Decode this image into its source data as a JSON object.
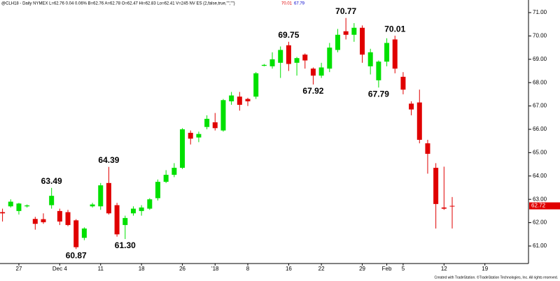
{
  "chart_data": {
    "type": "candlestick",
    "title": "@CLH18 - Daily NYMEX L=62.76 0.04 0.06% B=62.76 A=62.78 O=62.47 Hi=62.83 Lo=62.41 V=245 NV ES (2,false,true,\"\",\"\")",
    "title_marks": [
      "70.01",
      "67.79"
    ],
    "credit": "Created with TradeStation. ©TradeStation Technologies, Inc. All rights reserved.",
    "categories": [
      null,
      null,
      "27",
      null,
      null,
      null,
      null,
      "Dec 4",
      null,
      null,
      null,
      null,
      "11",
      null,
      null,
      null,
      null,
      "18",
      null,
      null,
      null,
      null,
      "26",
      null,
      null,
      null,
      "'18",
      null,
      null,
      null,
      "8",
      null,
      null,
      null,
      null,
      "16",
      null,
      null,
      null,
      "22",
      null,
      null,
      null,
      null,
      "29",
      null,
      null,
      "Feb",
      null,
      "5",
      null,
      null,
      null,
      null,
      "12",
      null,
      null,
      null,
      null,
      "19"
    ],
    "open": [
      62.45,
      62.7,
      62.5,
      62.7,
      62.16,
      62.15,
      62.75,
      62.5,
      62.45,
      62.1,
      61.35,
      62.7,
      62.7,
      63.7,
      62.75,
      61.9,
      62.4,
      62.5,
      62.6,
      63.05,
      63.75,
      64.05,
      64.35,
      65.85,
      65.65,
      66.1,
      66.3,
      65.95,
      67.2,
      67.4,
      67.3,
      67.4,
      68.72,
      68.7,
      68.85,
      69.6,
      68.85,
      69.2,
      68.6,
      68.3,
      68.6,
      69.4,
      70.2,
      70.05,
      70.35,
      68.7,
      68.1,
      68.9,
      69.85,
      68.25,
      67.1,
      67.15,
      65.4,
      64.35,
      62.65,
      62.72,
      null,
      null,
      null,
      null
    ],
    "high": [
      62.6,
      63.0,
      62.85,
      62.78,
      62.25,
      62.4,
      63.49,
      62.6,
      62.55,
      62.15,
      61.8,
      62.85,
      63.7,
      64.39,
      62.85,
      62.3,
      62.7,
      62.75,
      63.05,
      63.85,
      64.25,
      64.55,
      66.05,
      65.95,
      65.9,
      66.6,
      66.7,
      67.3,
      67.6,
      67.6,
      67.35,
      68.45,
      68.8,
      69.3,
      69.55,
      69.75,
      69.1,
      69.25,
      68.65,
      68.85,
      69.7,
      70.3,
      70.77,
      70.55,
      70.45,
      69.45,
      68.95,
      69.9,
      70.01,
      68.45,
      67.2,
      67.7,
      65.55,
      64.55,
      64.4,
      63.1,
      null,
      null,
      null,
      null
    ],
    "low": [
      62.05,
      62.65,
      62.35,
      62.65,
      61.7,
      61.95,
      62.6,
      61.9,
      61.85,
      60.87,
      61.25,
      62.65,
      62.55,
      62.35,
      61.4,
      61.3,
      62.3,
      62.3,
      62.55,
      62.95,
      63.7,
      63.95,
      64.3,
      65.35,
      65.45,
      66.0,
      65.95,
      65.9,
      67.05,
      66.8,
      67.0,
      67.3,
      68.7,
      68.6,
      68.2,
      68.5,
      68.3,
      68.6,
      67.92,
      68.2,
      68.45,
      69.3,
      69.85,
      69.75,
      68.85,
      68.35,
      67.79,
      68.7,
      68.4,
      67.5,
      66.6,
      65.4,
      64.1,
      61.75,
      62.55,
      61.75,
      null,
      null,
      null,
      null
    ],
    "close": [
      62.4,
      62.9,
      62.82,
      62.74,
      61.95,
      62.02,
      63.15,
      62.05,
      61.9,
      60.95,
      61.75,
      62.78,
      63.6,
      62.4,
      61.5,
      62.2,
      62.6,
      62.65,
      63.0,
      63.75,
      64.05,
      64.35,
      66.0,
      65.6,
      65.8,
      66.45,
      66.05,
      67.25,
      67.45,
      67.05,
      67.2,
      68.4,
      68.76,
      69.0,
      69.4,
      68.8,
      69.05,
      68.95,
      68.3,
      68.65,
      69.5,
      70.05,
      70.05,
      70.35,
      69.2,
      69.3,
      68.9,
      69.7,
      68.6,
      67.7,
      66.85,
      65.55,
      64.95,
      62.8,
      62.6,
      62.72,
      null,
      null,
      null,
      null
    ],
    "high_labels": [
      null,
      null,
      null,
      null,
      null,
      null,
      "63.49",
      null,
      null,
      null,
      null,
      null,
      null,
      "64.39",
      null,
      null,
      null,
      null,
      null,
      null,
      null,
      null,
      null,
      null,
      null,
      null,
      null,
      null,
      null,
      null,
      null,
      null,
      null,
      null,
      null,
      "69.75",
      null,
      null,
      null,
      null,
      null,
      null,
      "70.77",
      null,
      null,
      null,
      null,
      null,
      "70.01",
      null,
      null,
      null,
      null,
      null,
      null,
      null,
      null,
      null,
      null,
      null
    ],
    "low_labels": [
      null,
      null,
      null,
      null,
      null,
      null,
      null,
      null,
      null,
      "60.87",
      null,
      null,
      null,
      null,
      null,
      "61.30",
      null,
      null,
      null,
      null,
      null,
      null,
      null,
      null,
      null,
      null,
      null,
      null,
      null,
      null,
      null,
      null,
      null,
      null,
      null,
      null,
      null,
      null,
      "67.92",
      null,
      null,
      null,
      null,
      null,
      null,
      null,
      "67.79",
      null,
      null,
      null,
      null,
      null,
      null,
      null,
      null,
      null,
      null,
      null,
      null,
      null
    ],
    "up_color": "#00e000",
    "down_color": "#e00000",
    "ylim": [
      60.25,
      71.54
    ],
    "yticks": [
      {
        "value": 61,
        "label": "61.00"
      },
      {
        "value": 62,
        "label": "62.00"
      },
      {
        "value": 63,
        "label": "63.00"
      },
      {
        "value": 64,
        "label": "64.00"
      },
      {
        "value": 65,
        "label": "65.00"
      },
      {
        "value": 66,
        "label": "66.00"
      },
      {
        "value": 67,
        "label": "67.00"
      },
      {
        "value": 68,
        "label": "68.00"
      },
      {
        "value": 69,
        "label": "69.00"
      },
      {
        "value": 70,
        "label": "70.00"
      },
      {
        "value": 71,
        "label": "71.00"
      }
    ],
    "grid": false
  }
}
